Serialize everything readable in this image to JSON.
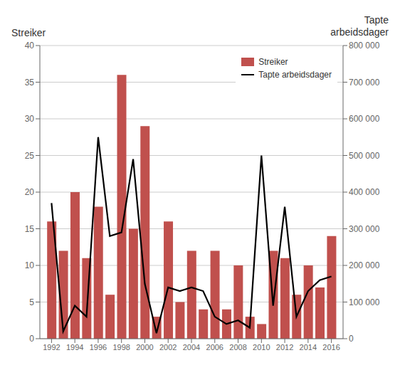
{
  "chart_data": {
    "type": "bar",
    "ylabel": "Streiker",
    "y2label": "Tapte\narbeidsdager",
    "x": [
      1992,
      1993,
      1994,
      1995,
      1996,
      1997,
      1998,
      1999,
      2000,
      2001,
      2002,
      2003,
      2004,
      2005,
      2006,
      2007,
      2008,
      2009,
      2010,
      2011,
      2012,
      2013,
      2014,
      2015,
      2016
    ],
    "series": [
      {
        "name": "Streiker",
        "type": "bar",
        "color": "#c0504d",
        "values": [
          16,
          12,
          20,
          11,
          18,
          6,
          36,
          15,
          29,
          3,
          16,
          5,
          12,
          4,
          12,
          4,
          10,
          3,
          2,
          12,
          11,
          6,
          10,
          7,
          14
        ]
      },
      {
        "name": "Tapte arbeidsdager",
        "type": "line",
        "color": "#000000",
        "axis": "y2",
        "values": [
          370000,
          20000,
          90000,
          60000,
          550000,
          280000,
          290000,
          490000,
          150000,
          15000,
          140000,
          130000,
          140000,
          130000,
          60000,
          40000,
          50000,
          30000,
          500000,
          90000,
          360000,
          60000,
          130000,
          160000,
          170000
        ]
      }
    ],
    "xlim": [
      1991.0,
      2017.0
    ],
    "xticks": [
      1992,
      1994,
      1996,
      1998,
      2000,
      2002,
      2004,
      2006,
      2008,
      2010,
      2012,
      2014,
      2016
    ],
    "ylim": [
      0,
      40
    ],
    "yticks": [
      0,
      5,
      10,
      15,
      20,
      25,
      30,
      35,
      40
    ],
    "y2lim": [
      0,
      800000
    ],
    "y2ticks": [
      0,
      {
        "value": 100000,
        "label": "100 000"
      },
      {
        "value": 200000,
        "label": "200 000"
      },
      {
        "value": 300000,
        "label": "300 000"
      },
      {
        "value": 400000,
        "label": "400 000"
      },
      {
        "value": 500000,
        "label": "500 000"
      },
      {
        "value": 600000,
        "label": "600 000"
      },
      {
        "value": 700000,
        "label": "700 000"
      },
      {
        "value": 800000,
        "label": "800 000"
      }
    ],
    "grid": true,
    "legend": "upper right"
  }
}
